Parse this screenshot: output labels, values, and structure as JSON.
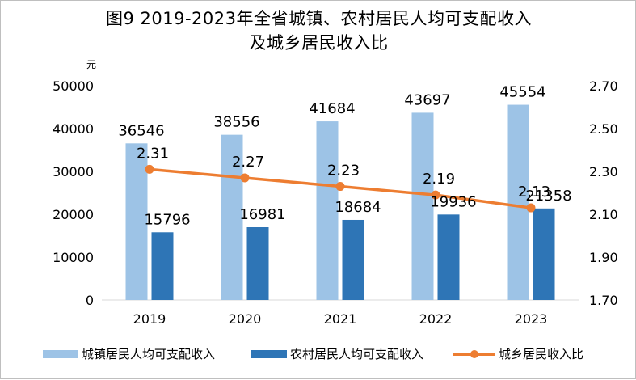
{
  "title_line1": "图9 2019-2023年全省城镇、农村居民人均可支配收入",
  "title_line2": "及城乡居民收入比",
  "chart_data": {
    "type": "bar",
    "categories": [
      "2019",
      "2020",
      "2021",
      "2022",
      "2023"
    ],
    "series": [
      {
        "name": "城镇居民人均可支配收入",
        "type": "bar",
        "axis": "left",
        "color": "#9DC3E6",
        "values": [
          36546,
          38556,
          41684,
          43697,
          45554
        ]
      },
      {
        "name": "农村居民人均可支配收入",
        "type": "bar",
        "axis": "left",
        "color": "#2E75B6",
        "values": [
          15796,
          16981,
          18684,
          19936,
          21358
        ]
      },
      {
        "name": "城乡居民收入比",
        "type": "line",
        "axis": "right",
        "color": "#ED7D31",
        "values": [
          2.31,
          2.27,
          2.23,
          2.19,
          2.13
        ]
      }
    ],
    "y_left": {
      "unit": "元",
      "min": 0,
      "max": 50000,
      "step": 10000,
      "ticks": [
        "0",
        "10000",
        "20000",
        "30000",
        "40000",
        "50000"
      ]
    },
    "y_right": {
      "min": 1.7,
      "max": 2.7,
      "step": 0.2,
      "ticks": [
        "1.70",
        "1.90",
        "2.10",
        "2.30",
        "2.50",
        "2.70"
      ]
    },
    "grid": false,
    "legend_position": "bottom"
  }
}
